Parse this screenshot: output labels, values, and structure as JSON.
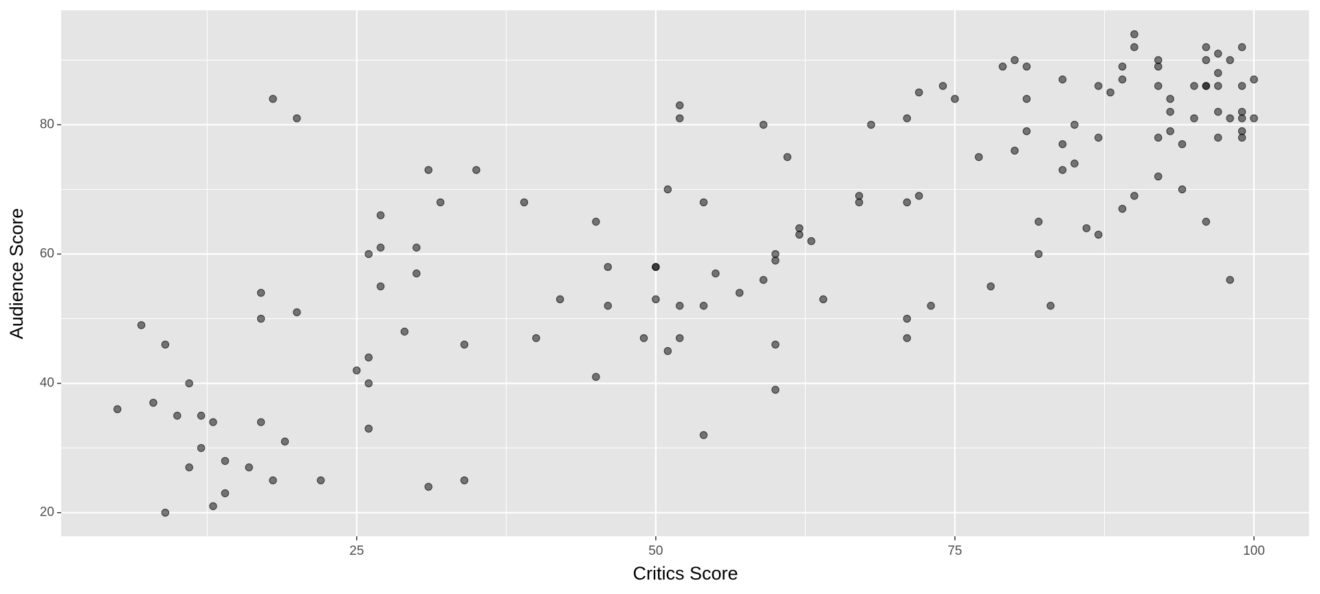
{
  "chart_data": {
    "type": "scatter",
    "x_label": "Critics Score",
    "y_label": "Audience Score",
    "xlim": [
      0.3,
      104.6
    ],
    "ylim": [
      16.35,
      97.7
    ],
    "xticks": [
      25,
      50,
      75,
      100
    ],
    "yticks": [
      20,
      40,
      60,
      80
    ],
    "grid": true,
    "color": "#000000",
    "alpha": 0.5,
    "x": [
      5,
      7,
      8,
      9,
      9,
      10,
      11,
      11,
      12,
      12,
      13,
      13,
      14,
      14,
      16,
      17,
      17,
      17,
      18,
      18,
      19,
      20,
      20,
      22,
      25,
      26,
      26,
      26,
      26,
      27,
      27,
      27,
      29,
      30,
      30,
      31,
      31,
      32,
      34,
      34,
      35,
      39,
      40,
      42,
      45,
      45,
      46,
      46,
      49,
      50,
      50,
      50,
      51,
      51,
      52,
      52,
      52,
      52,
      54,
      54,
      54,
      55,
      57,
      59,
      59,
      60,
      60,
      60,
      60,
      61,
      62,
      62,
      63,
      64,
      67,
      67,
      68,
      71,
      71,
      71,
      71,
      72,
      72,
      73,
      74,
      75,
      77,
      78,
      79,
      80,
      80,
      81,
      81,
      81,
      82,
      82,
      83,
      84,
      84,
      84,
      85,
      85,
      86,
      87,
      87,
      87,
      88,
      89,
      89,
      89,
      90,
      90,
      90,
      92,
      92,
      92,
      92,
      92,
      93,
      93,
      93,
      94,
      94,
      95,
      95,
      96,
      96,
      96,
      96,
      96,
      97,
      97,
      97,
      97,
      97,
      98,
      98,
      98,
      99,
      99,
      99,
      99,
      99,
      99,
      100,
      100
    ],
    "y": [
      36,
      49,
      37,
      46,
      20,
      35,
      40,
      27,
      35,
      30,
      34,
      21,
      28,
      23,
      27,
      54,
      50,
      34,
      84,
      25,
      31,
      81,
      51,
      25,
      42,
      60,
      44,
      40,
      33,
      66,
      61,
      55,
      48,
      61,
      57,
      73,
      24,
      68,
      46,
      25,
      73,
      68,
      47,
      53,
      65,
      41,
      58,
      52,
      47,
      58,
      58,
      53,
      70,
      45,
      83,
      81,
      52,
      47,
      68,
      52,
      32,
      57,
      54,
      80,
      56,
      60,
      59,
      46,
      39,
      75,
      64,
      63,
      62,
      53,
      69,
      68,
      80,
      81,
      68,
      50,
      47,
      85,
      69,
      52,
      86,
      84,
      75,
      55,
      89,
      90,
      76,
      89,
      84,
      79,
      65,
      60,
      52,
      87,
      77,
      73,
      80,
      74,
      64,
      86,
      78,
      63,
      85,
      89,
      87,
      67,
      94,
      92,
      69,
      90,
      89,
      86,
      78,
      72,
      84,
      82,
      79,
      77,
      70,
      86,
      81,
      92,
      90,
      86,
      86,
      65,
      91,
      88,
      86,
      82,
      78,
      90,
      81,
      56,
      92,
      86,
      82,
      81,
      79,
      78,
      87,
      81
    ]
  }
}
